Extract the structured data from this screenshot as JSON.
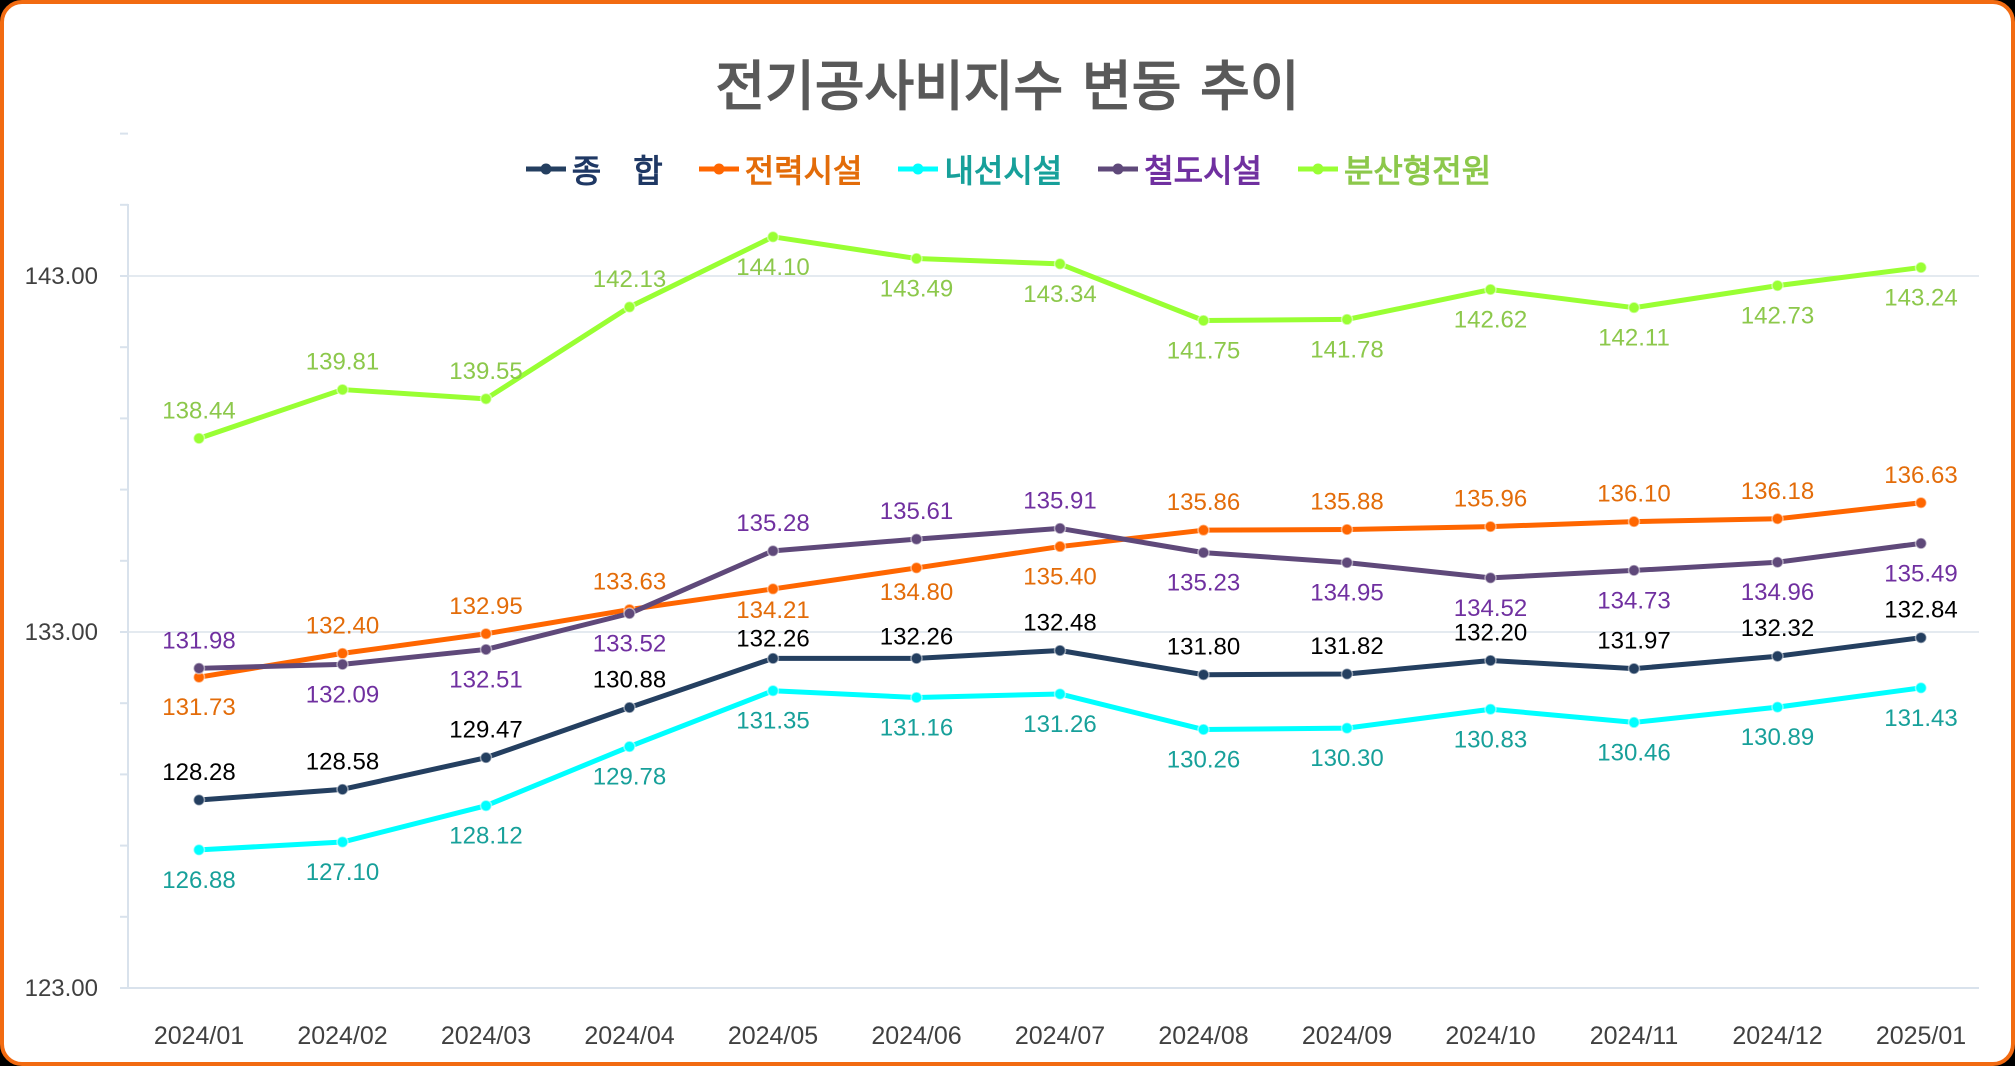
{
  "chart_data": {
    "type": "line",
    "title": "전기공사비지수 변동 추이",
    "categories": [
      "2024/01",
      "2024/02",
      "2024/03",
      "2024/04",
      "2024/05",
      "2024/06",
      "2024/07",
      "2024/08",
      "2024/09",
      "2024/10",
      "2024/11",
      "2024/12",
      "2025/01"
    ],
    "ylim": [
      123,
      147
    ],
    "yticks": [
      "123.00",
      "133.00",
      "143.00"
    ],
    "ytick_values": [
      123,
      133,
      143
    ],
    "grid": "horizontal",
    "legend_position": "top",
    "series": [
      {
        "name": "종　합",
        "line_color": "#243F60",
        "label_color": "#000000",
        "values": [
          128.28,
          128.58,
          129.47,
          130.88,
          132.26,
          132.26,
          132.48,
          131.8,
          131.82,
          132.2,
          131.97,
          132.32,
          132.84
        ]
      },
      {
        "name": "전력시설",
        "line_color": "#FF6600",
        "label_color": "#E36C09",
        "values": [
          131.73,
          132.4,
          132.95,
          133.63,
          134.21,
          134.8,
          135.4,
          135.86,
          135.88,
          135.96,
          136.1,
          136.18,
          136.63
        ]
      },
      {
        "name": "내선시설",
        "line_color": "#00FFFF",
        "label_color": "#17A09A",
        "values": [
          126.88,
          127.1,
          128.12,
          129.78,
          131.35,
          131.16,
          131.26,
          130.26,
          130.3,
          130.83,
          130.46,
          130.89,
          131.43
        ]
      },
      {
        "name": "철도시설",
        "line_color": "#5F497A",
        "label_color": "#7030A0",
        "values": [
          131.98,
          132.09,
          132.51,
          133.52,
          135.28,
          135.61,
          135.91,
          135.23,
          134.95,
          134.52,
          134.73,
          134.96,
          135.49
        ]
      },
      {
        "name": "분산형전원",
        "line_color": "#99FF33",
        "label_color": "#8CC84B",
        "values": [
          138.44,
          139.81,
          139.55,
          142.13,
          144.1,
          143.49,
          143.34,
          141.75,
          141.78,
          142.62,
          142.11,
          142.73,
          143.24
        ]
      }
    ]
  }
}
